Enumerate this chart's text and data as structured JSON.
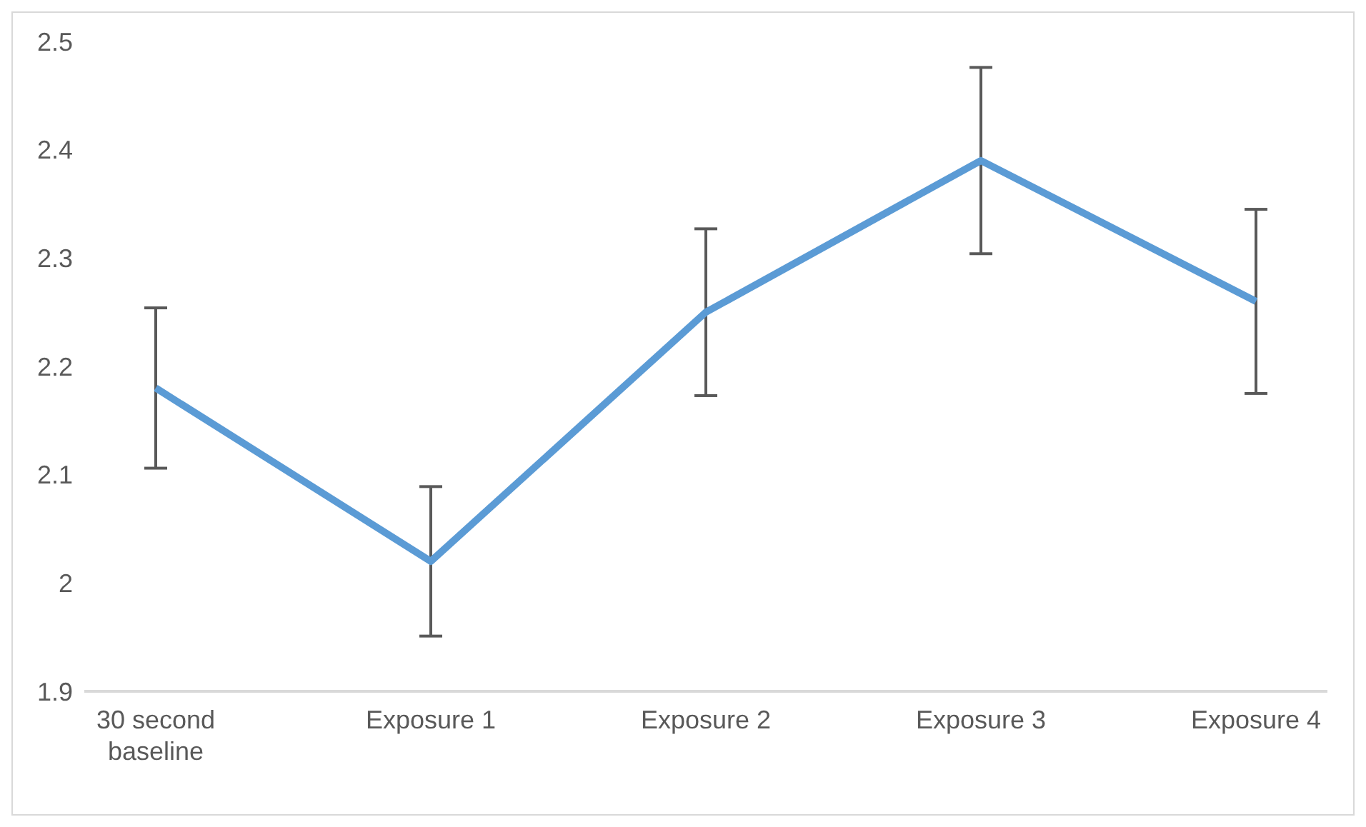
{
  "chart_data": {
    "type": "line",
    "categories": [
      "30 second baseline",
      "Exposure 1",
      "Exposure 2",
      "Exposure 3",
      "Exposure 4"
    ],
    "series": [
      {
        "color": "#5b9bd5",
        "values": [
          2.18,
          2.02,
          2.25,
          2.39,
          2.26
        ],
        "errors": [
          0.074,
          0.069,
          0.077,
          0.086,
          0.085
        ]
      }
    ],
    "ylim": [
      1.9,
      2.5
    ],
    "yticks": [
      1.9,
      2,
      2.1,
      2.2,
      2.3,
      2.4,
      2.5
    ],
    "grid": false,
    "legend": false,
    "marker": "none",
    "line_style": "solid"
  }
}
